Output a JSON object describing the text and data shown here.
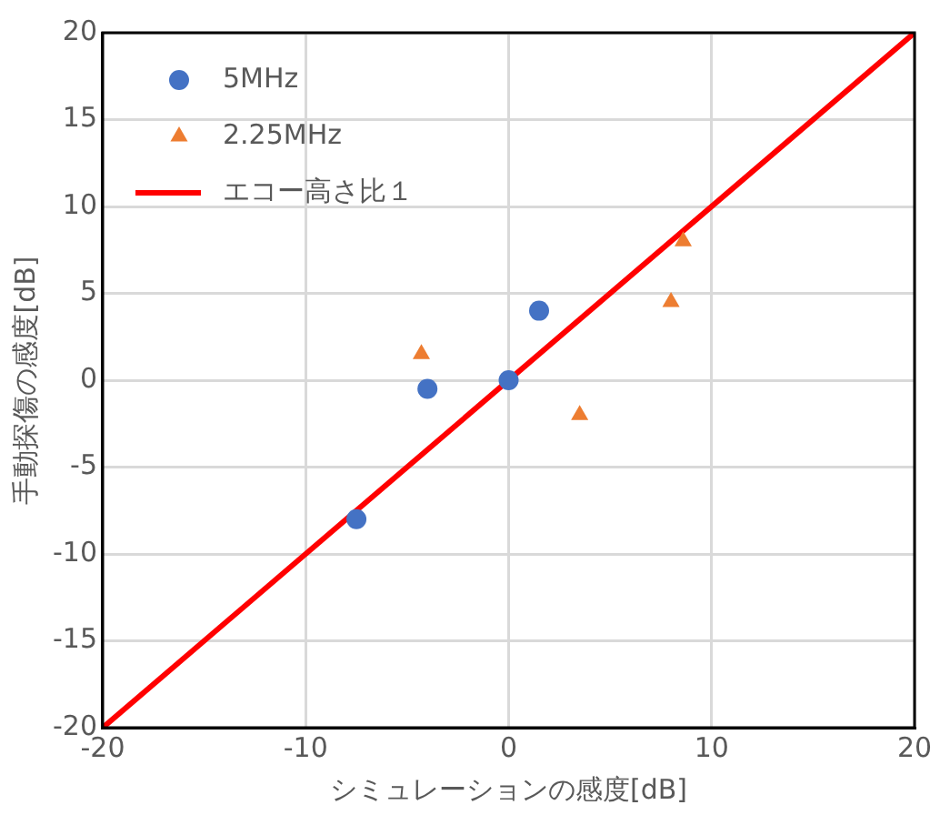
{
  "chart_data": {
    "type": "scatter",
    "xlabel": "シミュレーションの感度[dB]",
    "ylabel": "手動探傷の感度[dB]",
    "series": [
      {
        "name": "5MHz",
        "color": "#4472c4",
        "marker": "circle",
        "x": [
          -7.5,
          -4,
          0,
          1.5
        ],
        "values": [
          -8,
          -0.5,
          0,
          4
        ]
      },
      {
        "name": "2.25MHz",
        "color": "#ed7d31",
        "marker": "triangle",
        "x": [
          -4.3,
          3.5,
          8,
          8.6
        ],
        "values": [
          1.5,
          -2,
          4.5,
          8
        ]
      },
      {
        "name": "エコー高さ比１",
        "type": "line",
        "color": "#ff0000",
        "marker": "none",
        "x": [
          -20,
          20
        ],
        "values": [
          -20,
          20
        ]
      }
    ],
    "xlim": [
      -20,
      20
    ],
    "xticks": [
      -20,
      -10,
      0,
      10,
      20
    ],
    "ylim": [
      -20,
      20
    ],
    "yticks": [
      -20,
      -15,
      -10,
      -5,
      0,
      5,
      10,
      15,
      20
    ],
    "grid": true,
    "legend": "top left"
  }
}
